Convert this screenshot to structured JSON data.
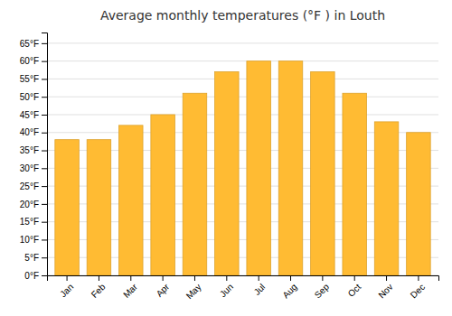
{
  "chart_data": {
    "type": "bar",
    "title": "Average monthly temperatures (°F ) in Louth",
    "categories": [
      "Jan",
      "Feb",
      "Mar",
      "Apr",
      "May",
      "Jun",
      "Jul",
      "Aug",
      "Sep",
      "Oct",
      "Nov",
      "Dec"
    ],
    "values": [
      38,
      38,
      42,
      45,
      51,
      57,
      60,
      60,
      57,
      51,
      43,
      40
    ],
    "color": "#FFBB33",
    "ylim": [
      0,
      68
    ],
    "yticks": [
      {
        "value": 0,
        "label": "0°F"
      },
      {
        "value": 5,
        "label": "5°F"
      },
      {
        "value": 10,
        "label": "10°F"
      },
      {
        "value": 15,
        "label": "15°F"
      },
      {
        "value": 20,
        "label": "20°F"
      },
      {
        "value": 25,
        "label": "25°F"
      },
      {
        "value": 30,
        "label": "30°F"
      },
      {
        "value": 35,
        "label": "35°F"
      },
      {
        "value": 40,
        "label": "40°F"
      },
      {
        "value": 45,
        "label": "45°F"
      },
      {
        "value": 50,
        "label": "50°F"
      },
      {
        "value": 55,
        "label": "55°F"
      },
      {
        "value": 60,
        "label": "60°F"
      },
      {
        "value": 65,
        "label": "65°F"
      }
    ],
    "grid": true
  }
}
